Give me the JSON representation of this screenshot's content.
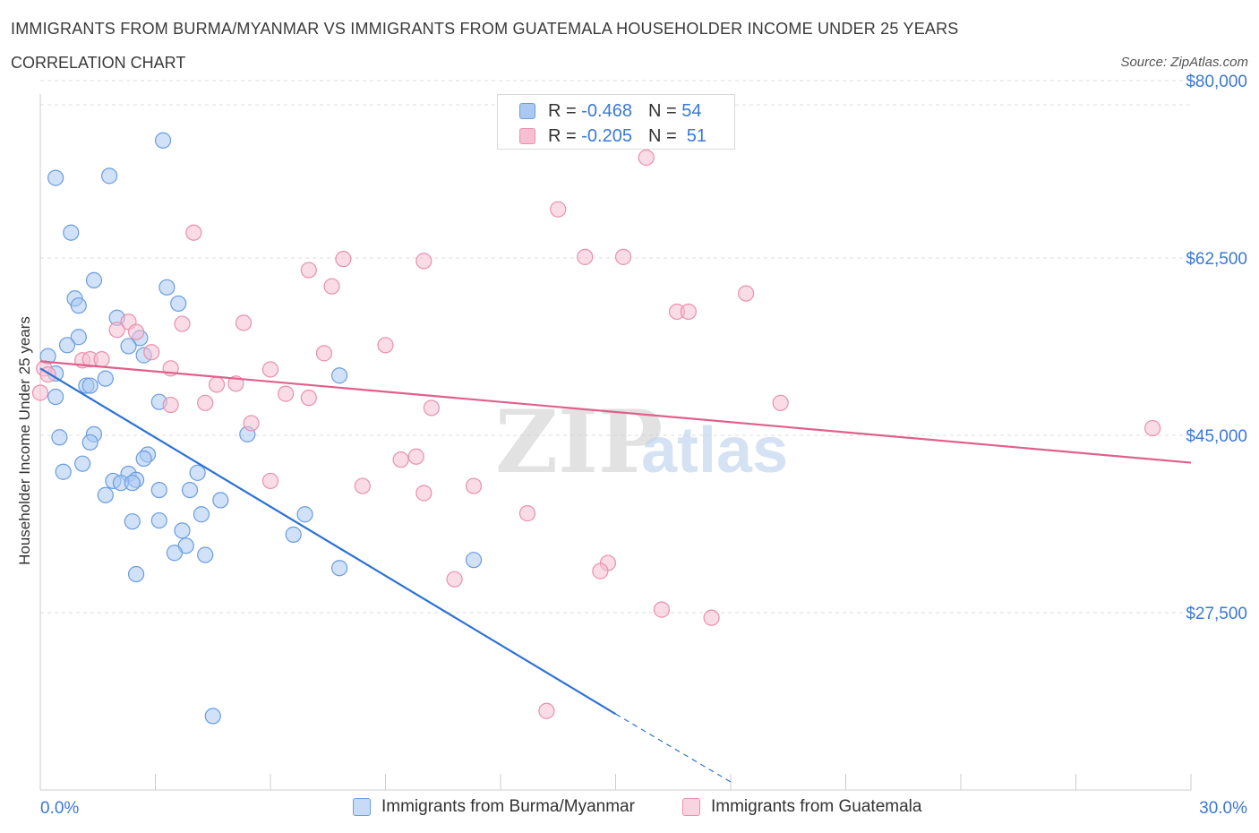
{
  "header": {
    "title": "IMMIGRANTS FROM BURMA/MYANMAR VS IMMIGRANTS FROM GUATEMALA HOUSEHOLDER INCOME UNDER 25 YEARS",
    "subtitle": "CORRELATION CHART",
    "source": "Source: ZipAtlas.com"
  },
  "legend": {
    "r_label": "R =",
    "n_label": "N =",
    "series1": {
      "r": "-0.468",
      "n": "54"
    },
    "series2": {
      "r": "-0.205",
      "n": "51"
    }
  },
  "watermark": {
    "zip": "ZIP",
    "atlas": "atlas"
  },
  "chart_data": {
    "type": "scatter",
    "title": "IMMIGRANTS FROM BURMA/MYANMAR VS IMMIGRANTS FROM GUATEMALA HOUSEHOLDER INCOME UNDER 25 YEARS",
    "xlabel": "",
    "ylabel": "Householder Income Under 25 years",
    "xlim": [
      0,
      30
    ],
    "ylim": [
      10000,
      80000
    ],
    "x_tick_labels": [
      "0.0%",
      "30.0%"
    ],
    "y_ticks": [
      27500,
      45000,
      62500,
      80000
    ],
    "y_tick_labels": [
      "$27,500",
      "$45,000",
      "$62,500",
      "$80,000"
    ],
    "grid": true,
    "colors": {
      "series1_fill": "#aac8f2",
      "series1_stroke": "#6a9de0",
      "series1_line": "#2f72d4",
      "series2_fill": "#f6c0d2",
      "series2_stroke": "#e890ae",
      "series2_line": "#e0608a",
      "axis_label": "#3b78d6",
      "grid": "#dddddd"
    },
    "series": [
      {
        "name": "Immigrants from Burma/Myanmar",
        "points": [
          [
            3.2,
            74100
          ],
          [
            0.4,
            70400
          ],
          [
            1.8,
            70600
          ],
          [
            0.8,
            65000
          ],
          [
            1.4,
            60300
          ],
          [
            3.3,
            59600
          ],
          [
            0.9,
            58500
          ],
          [
            1.0,
            57800
          ],
          [
            3.6,
            58000
          ],
          [
            2.0,
            56600
          ],
          [
            2.6,
            54600
          ],
          [
            1.0,
            54700
          ],
          [
            0.7,
            53900
          ],
          [
            2.3,
            53800
          ],
          [
            2.7,
            52900
          ],
          [
            0.2,
            52800
          ],
          [
            0.4,
            51100
          ],
          [
            1.7,
            50600
          ],
          [
            7.8,
            50900
          ],
          [
            1.2,
            49900
          ],
          [
            1.3,
            49900
          ],
          [
            0.4,
            48800
          ],
          [
            3.1,
            48300
          ],
          [
            5.4,
            45100
          ],
          [
            0.5,
            44800
          ],
          [
            1.4,
            45100
          ],
          [
            1.3,
            44300
          ],
          [
            2.8,
            43100
          ],
          [
            2.7,
            42700
          ],
          [
            1.1,
            42200
          ],
          [
            0.6,
            41400
          ],
          [
            4.1,
            41300
          ],
          [
            2.3,
            41200
          ],
          [
            1.9,
            40500
          ],
          [
            2.5,
            40600
          ],
          [
            2.1,
            40300
          ],
          [
            2.4,
            40300
          ],
          [
            3.1,
            39600
          ],
          [
            3.9,
            39600
          ],
          [
            1.7,
            39100
          ],
          [
            4.7,
            38600
          ],
          [
            4.2,
            37200
          ],
          [
            6.9,
            37200
          ],
          [
            2.4,
            36500
          ],
          [
            3.1,
            36600
          ],
          [
            3.7,
            35600
          ],
          [
            3.8,
            34100
          ],
          [
            3.5,
            33400
          ],
          [
            4.3,
            33200
          ],
          [
            6.6,
            35200
          ],
          [
            11.3,
            32700
          ],
          [
            7.8,
            31900
          ],
          [
            2.5,
            31300
          ],
          [
            4.5,
            17300
          ]
        ]
      },
      {
        "name": "Immigrants from Guatemala",
        "points": [
          [
            15.8,
            72400
          ],
          [
            13.5,
            67300
          ],
          [
            4.0,
            65000
          ],
          [
            14.2,
            62600
          ],
          [
            15.2,
            62600
          ],
          [
            7.9,
            62400
          ],
          [
            10.0,
            62200
          ],
          [
            7.0,
            61300
          ],
          [
            7.6,
            59700
          ],
          [
            18.4,
            59000
          ],
          [
            16.6,
            57200
          ],
          [
            16.9,
            57200
          ],
          [
            2.3,
            56200
          ],
          [
            3.7,
            56000
          ],
          [
            5.3,
            56100
          ],
          [
            2.0,
            55400
          ],
          [
            2.5,
            55200
          ],
          [
            9.0,
            53900
          ],
          [
            2.9,
            53200
          ],
          [
            7.4,
            53100
          ],
          [
            1.1,
            52400
          ],
          [
            1.3,
            52500
          ],
          [
            1.6,
            52500
          ],
          [
            0.1,
            51600
          ],
          [
            3.4,
            51600
          ],
          [
            6.0,
            51500
          ],
          [
            0.2,
            51000
          ],
          [
            4.6,
            50000
          ],
          [
            5.1,
            50100
          ],
          [
            6.4,
            49100
          ],
          [
            7.0,
            48700
          ],
          [
            3.4,
            48000
          ],
          [
            4.3,
            48200
          ],
          [
            10.2,
            47700
          ],
          [
            19.3,
            48200
          ],
          [
            29.0,
            45700
          ],
          [
            5.5,
            46200
          ],
          [
            9.4,
            42600
          ],
          [
            9.8,
            42900
          ],
          [
            6.0,
            40500
          ],
          [
            8.4,
            40000
          ],
          [
            11.3,
            40000
          ],
          [
            10.0,
            39300
          ],
          [
            12.7,
            37300
          ],
          [
            14.8,
            32400
          ],
          [
            14.6,
            31600
          ],
          [
            10.8,
            30800
          ],
          [
            16.2,
            27800
          ],
          [
            17.5,
            27000
          ],
          [
            13.2,
            17800
          ],
          [
            0.0,
            49200
          ]
        ]
      }
    ],
    "trend_lines": [
      {
        "series": "Immigrants from Burma/Myanmar",
        "x0": 0,
        "y0": 51600,
        "x1": 15,
        "y1": 17500,
        "dashed_to_x": 18,
        "dashed_to_y": 10800
      },
      {
        "series": "Immigrants from Guatemala",
        "x0": 0,
        "y0": 52300,
        "x1": 30,
        "y1": 42300
      }
    ]
  }
}
